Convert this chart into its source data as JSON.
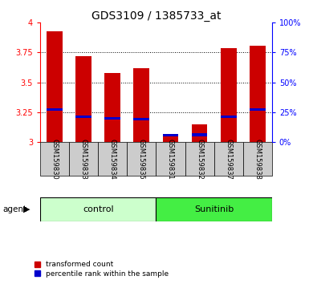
{
  "title": "GDS3109 / 1385733_at",
  "samples": [
    "GSM159830",
    "GSM159833",
    "GSM159834",
    "GSM159835",
    "GSM159831",
    "GSM159832",
    "GSM159837",
    "GSM159838"
  ],
  "red_values": [
    3.93,
    3.72,
    3.58,
    3.62,
    3.06,
    3.15,
    3.79,
    3.81
  ],
  "blue_values": [
    3.27,
    3.21,
    3.2,
    3.19,
    3.055,
    3.06,
    3.21,
    3.27
  ],
  "ymin": 3.0,
  "ymax": 4.0,
  "bar_color": "#cc0000",
  "blue_color": "#0000cc",
  "control_bg": "#ccffcc",
  "sunitinib_bg": "#44ee44",
  "tick_label_bg": "#cccccc",
  "control_label": "control",
  "sunitinib_label": "Sunitinib",
  "agent_label": "agent",
  "legend_red": "transformed count",
  "legend_blue": "percentile rank within the sample",
  "bar_width": 0.55,
  "title_fontsize": 10
}
